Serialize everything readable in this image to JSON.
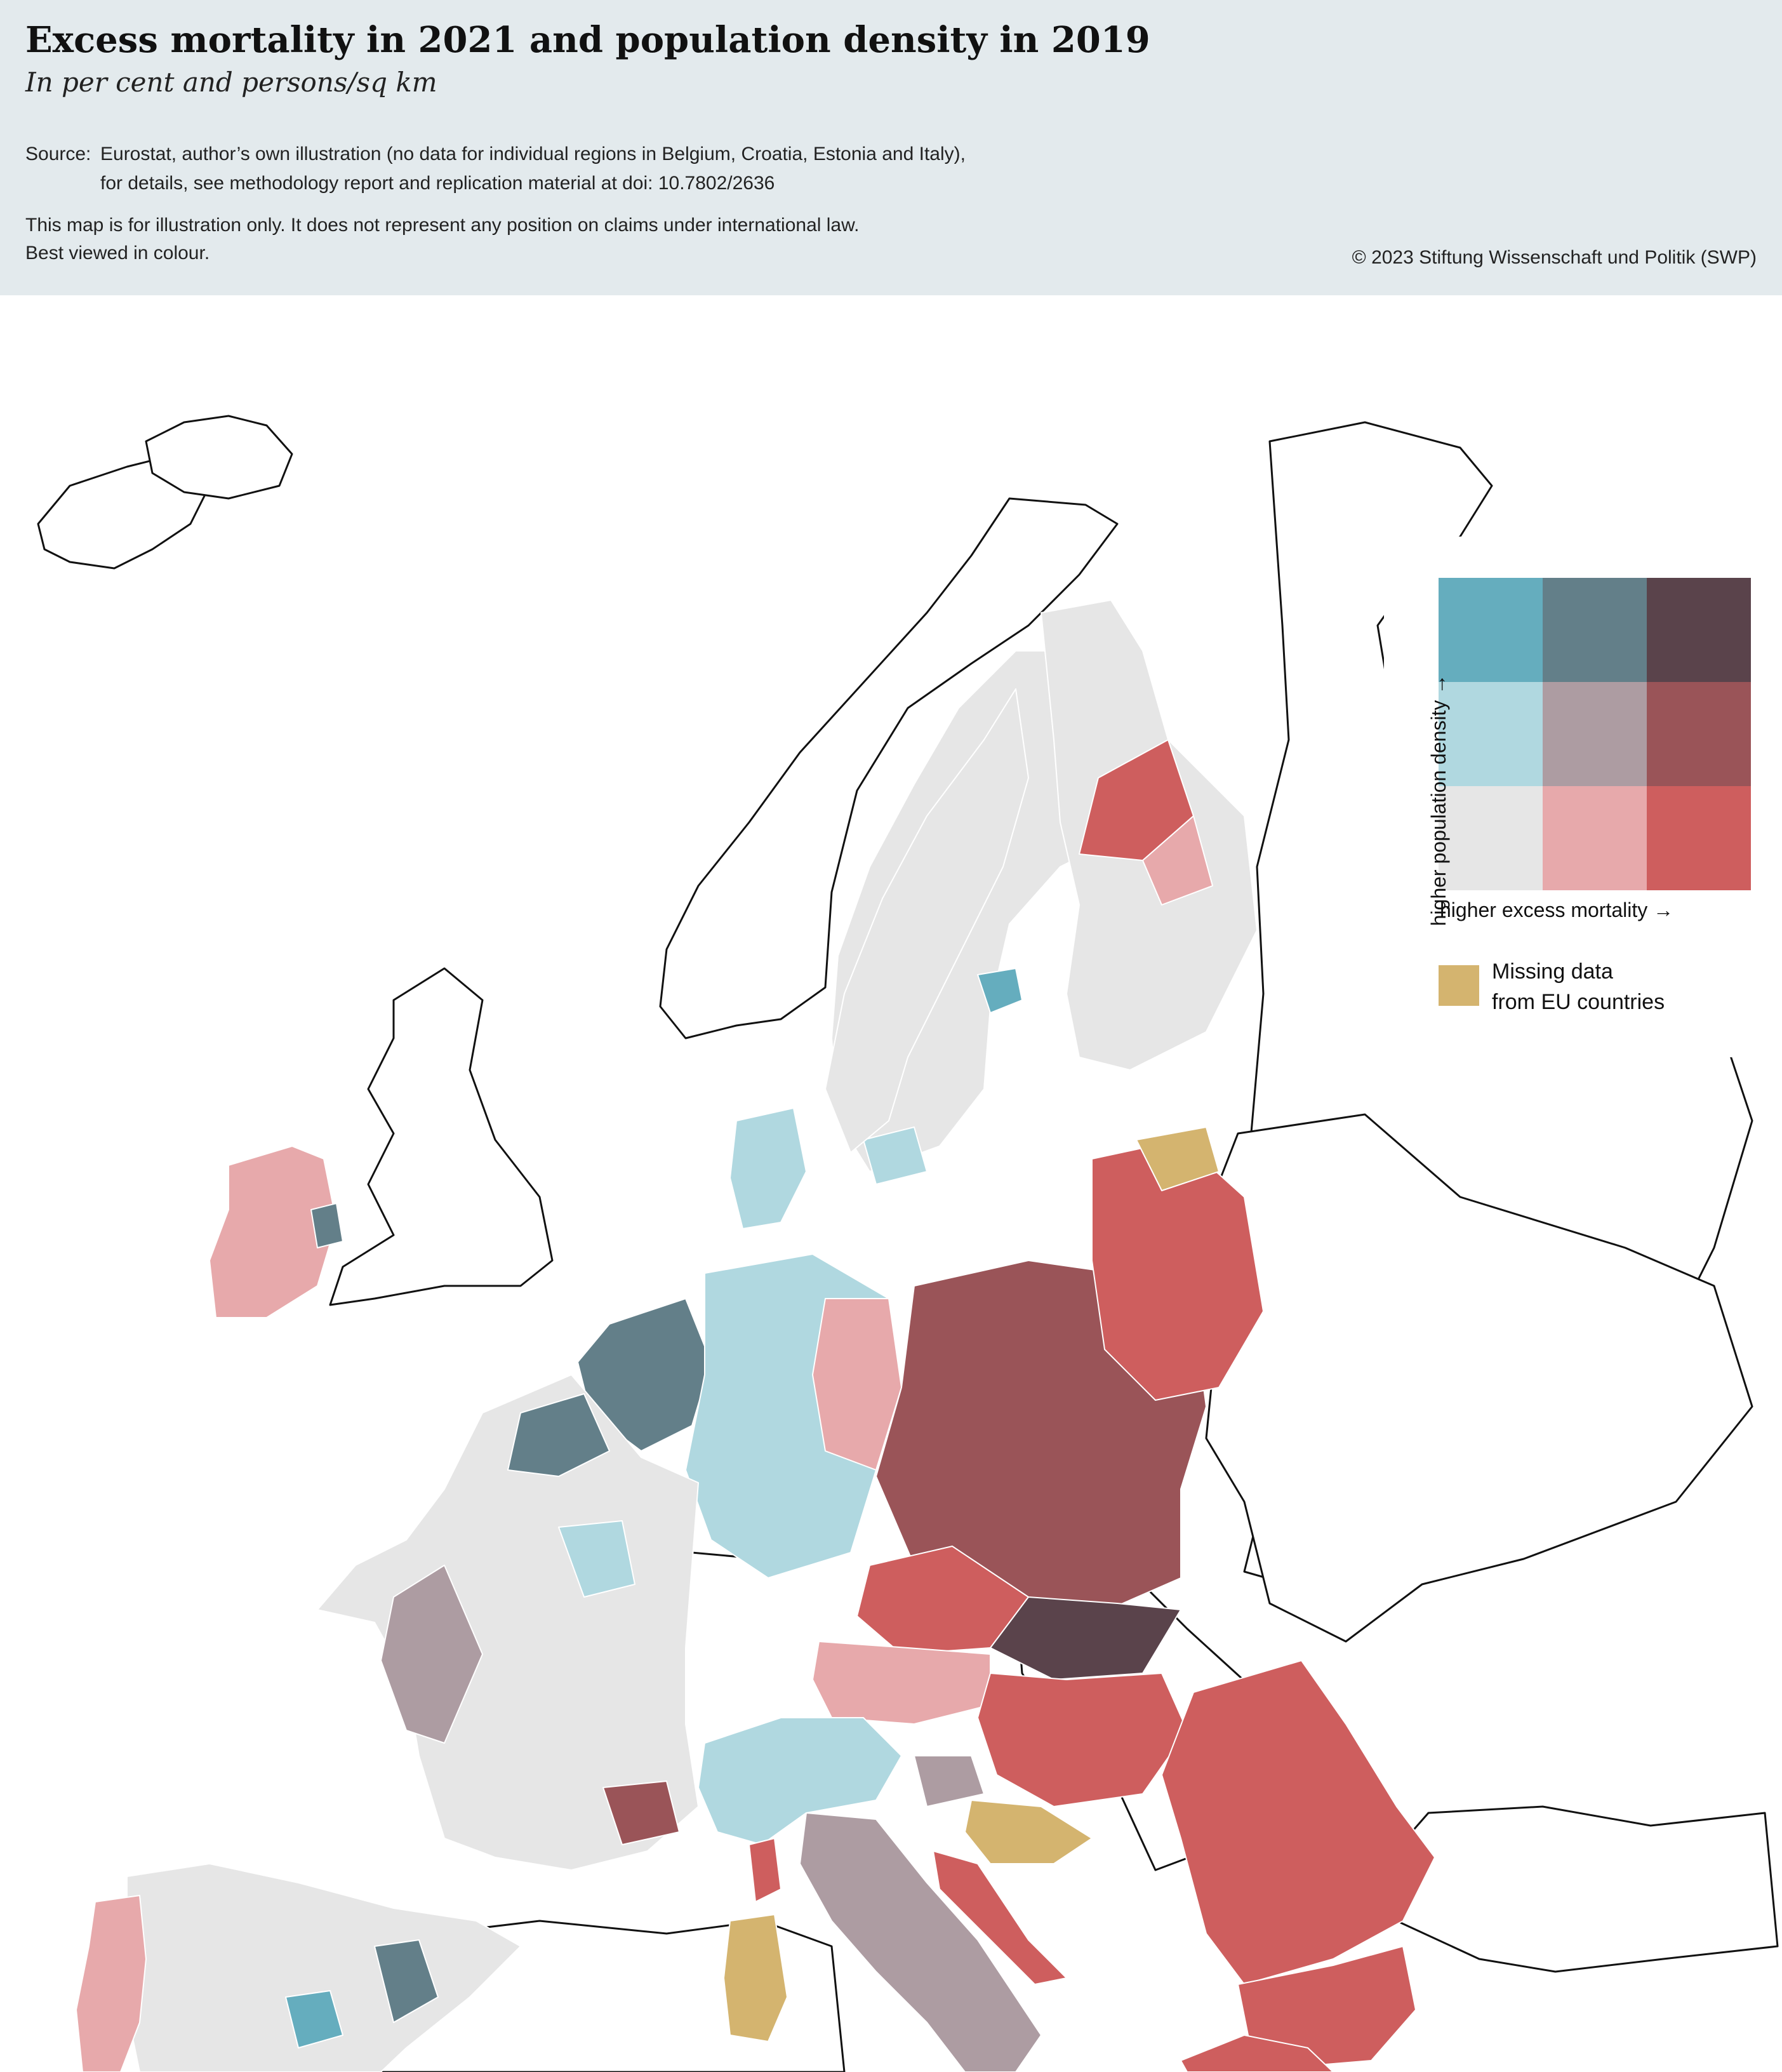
{
  "header": {
    "title": "Excess mortality in 2021 and population density in 2019",
    "subtitle": "In per cent and persons/sq km",
    "source_label": "Source:",
    "source_line1": "Eurostat, author’s own illustration (no data for individual regions in Belgium, Croatia, Estonia and Italy),",
    "source_line2": "for details, see methodology report and replication material at doi: 10.7802/2636",
    "disclaimer_line1": "This map is for illustration only. It does not represent any position on claims under international law.",
    "disclaimer_line2": "Best viewed in colour.",
    "copyright": "© 2023 Stiftung Wissenschaft und Politik (SWP)"
  },
  "legend": {
    "y_label": "higher population density →",
    "x_label": "higher excess mortality →",
    "missing_label_line1": "Missing data",
    "missing_label_line2": "from EU countries",
    "grid_rows": [
      [
        "#65adbe",
        "#637f89",
        "#5a434b"
      ],
      [
        "#b0d8e0",
        "#ad9ca2",
        "#9a5458"
      ],
      [
        "#e6e6e6",
        "#e7a9ab",
        "#ce5e5e"
      ]
    ],
    "missing_color": "#d4b46f"
  },
  "colors": {
    "header_background": "#e3eaed",
    "non_eu_fill": "#ffffff",
    "border_line": "#111111"
  }
}
